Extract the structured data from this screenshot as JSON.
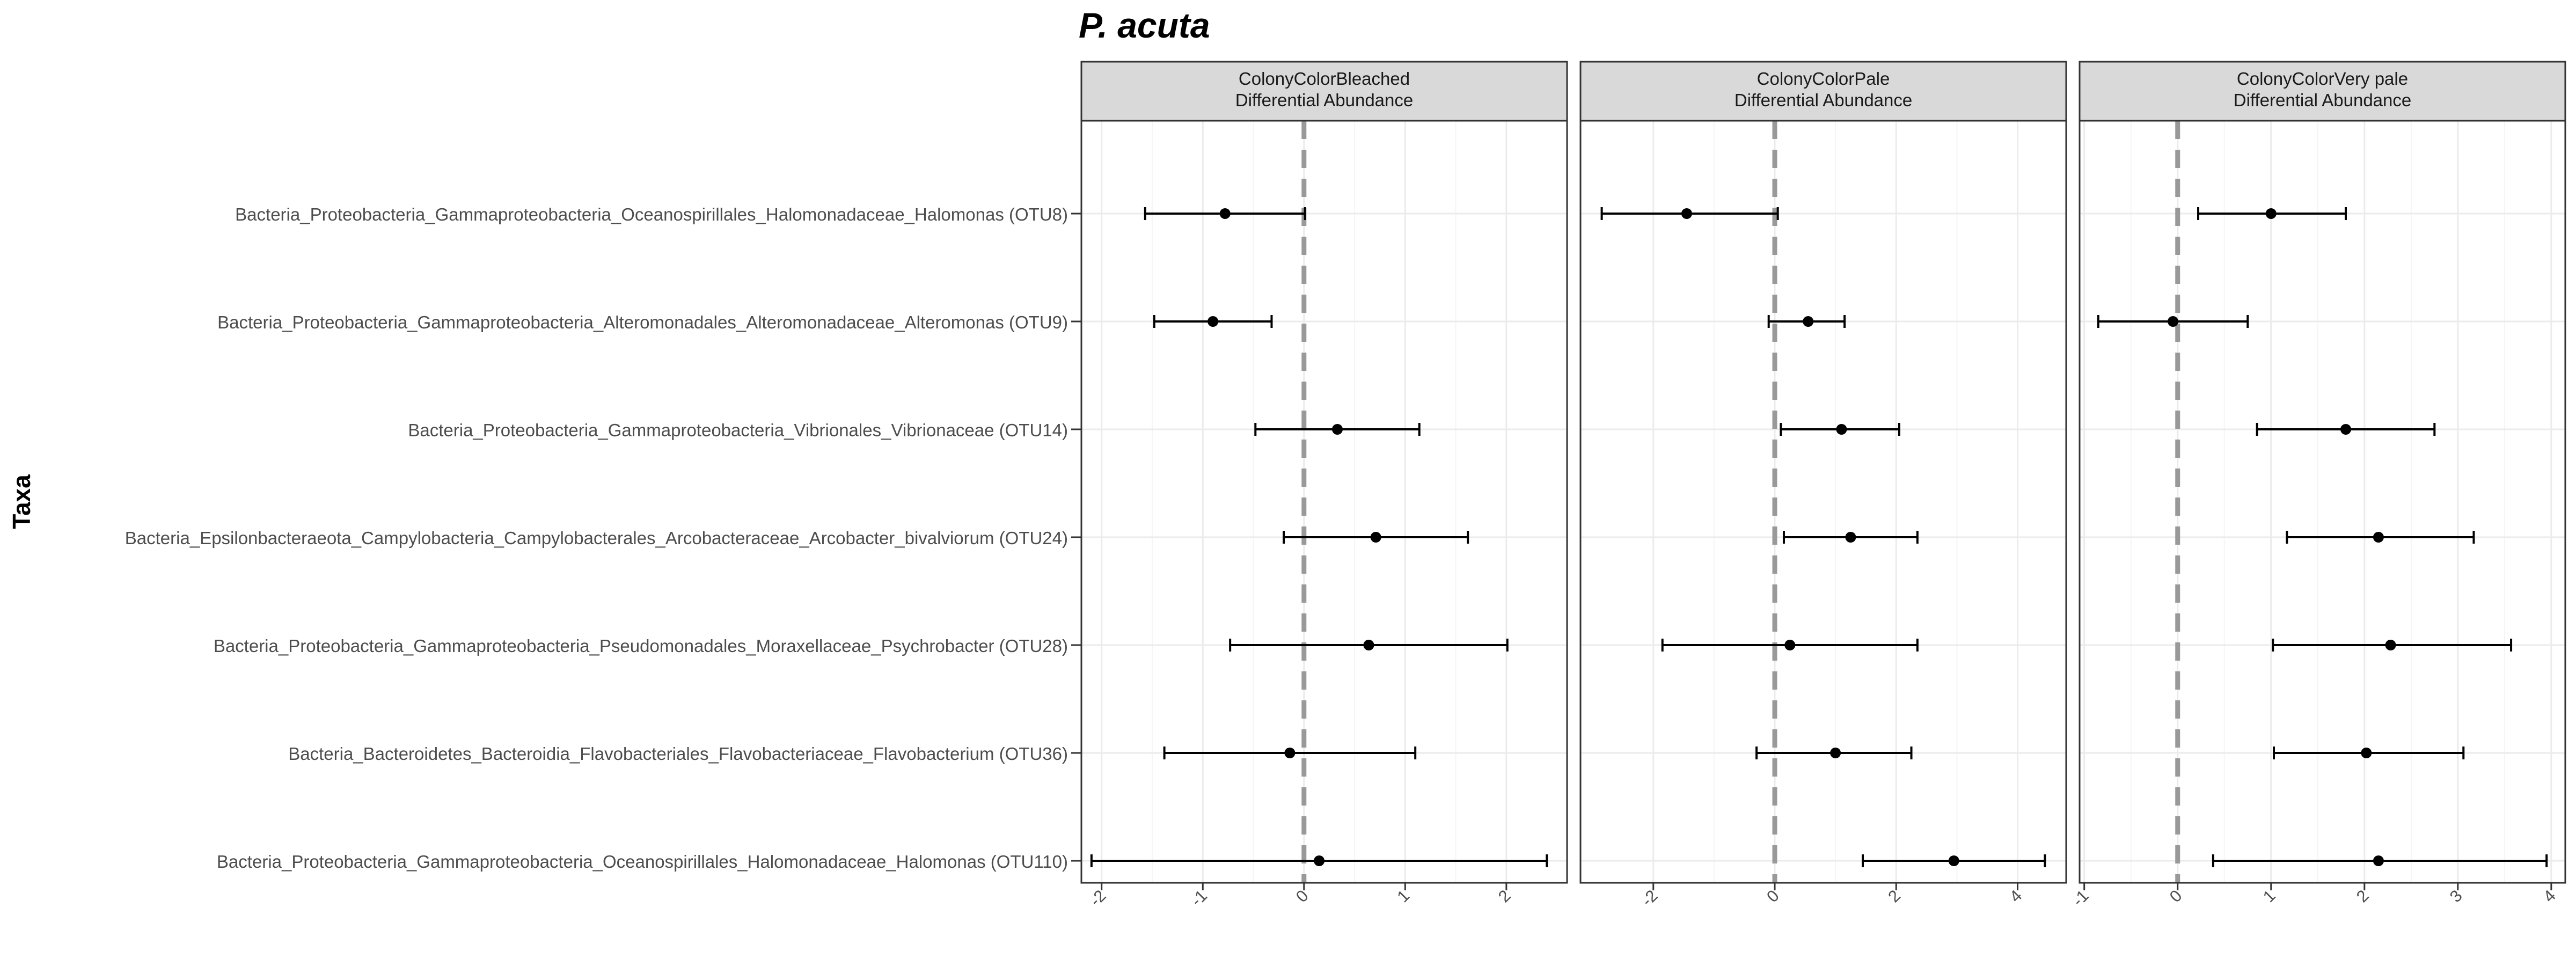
{
  "title": "P. acuta",
  "y_axis_label": "Taxa",
  "colors": {
    "strip_bg": "#d9d9d9",
    "panel_border": "#333333",
    "grid_major": "#ebebeb",
    "zero_line": "#999999",
    "point": "#000000",
    "text": "#4d4d4d"
  },
  "chart_data": [
    {
      "type": "scatter",
      "error_bars": true,
      "facet": "ColonyColorBleached",
      "strip_lines": [
        "ColonyColorBleached",
        "Differential Abundance"
      ],
      "categories": [
        "Bacteria_Proteobacteria_Gammaproteobacteria_Oceanospirillales_Halomonadaceae_Halomonas (OTU8)",
        "Bacteria_Proteobacteria_Gammaproteobacteria_Alteromonadales_Alteromonadaceae_Alteromonas (OTU9)",
        "Bacteria_Proteobacteria_Gammaproteobacteria_Vibrionales_Vibrionaceae (OTU14)",
        "Bacteria_Epsilonbacteraeota_Campylobacteria_Campylobacterales_Arcobacteraceae_Arcobacter_bivalviorum (OTU24)",
        "Bacteria_Proteobacteria_Gammaproteobacteria_Pseudomonadales_Moraxellaceae_Psychrobacter (OTU28)",
        "Bacteria_Bacteroidetes_Bacteroidia_Flavobacteriales_Flavobacteriaceae_Flavobacterium (OTU36)",
        "Bacteria_Proteobacteria_Gammaproteobacteria_Oceanospirillales_Halomonadaceae_Halomonas (OTU110)"
      ],
      "estimate": [
        -0.78,
        -0.9,
        0.33,
        0.71,
        0.64,
        -0.14,
        0.15
      ],
      "lower": [
        -1.57,
        -1.48,
        -0.48,
        -0.2,
        -0.73,
        -1.38,
        -2.1
      ],
      "upper": [
        0.01,
        -0.32,
        1.14,
        1.62,
        2.01,
        1.1,
        2.4
      ],
      "xlim": [
        -2.2,
        2.6
      ],
      "xticks": [
        -2,
        -1,
        0,
        1,
        2
      ],
      "xtick_labels": [
        "-2",
        "-1",
        "0",
        "1",
        "2"
      ],
      "zero_line": 0,
      "grid": true
    },
    {
      "type": "scatter",
      "error_bars": true,
      "facet": "ColonyColorPale",
      "strip_lines": [
        "ColonyColorPale",
        "Differential Abundance"
      ],
      "estimate": [
        -1.45,
        0.55,
        1.1,
        1.25,
        0.25,
        1.0,
        2.95
      ],
      "lower": [
        -2.85,
        -0.1,
        0.1,
        0.15,
        -1.85,
        -0.3,
        1.45
      ],
      "upper": [
        0.05,
        1.15,
        2.05,
        2.35,
        2.35,
        2.25,
        4.45
      ],
      "xlim": [
        -3.2,
        4.8
      ],
      "xticks": [
        -2,
        0,
        2,
        4
      ],
      "xtick_labels": [
        "-2",
        "0",
        "2",
        "4"
      ],
      "zero_line": 0,
      "grid": true
    },
    {
      "type": "scatter",
      "error_bars": true,
      "facet": "ColonyColorVery pale",
      "strip_lines": [
        "ColonyColorVery pale",
        "Differential Abundance"
      ],
      "estimate": [
        1.0,
        -0.05,
        1.8,
        2.15,
        2.28,
        2.02,
        2.15
      ],
      "lower": [
        0.22,
        -0.85,
        0.85,
        1.17,
        1.02,
        1.03,
        0.38
      ],
      "upper": [
        1.8,
        0.75,
        2.75,
        3.17,
        3.57,
        3.06,
        3.95
      ],
      "xlim": [
        -1.05,
        4.15
      ],
      "xticks": [
        -1,
        0,
        1,
        2,
        3,
        4
      ],
      "xtick_labels": [
        "-1",
        "0",
        "1",
        "2",
        "3",
        "4"
      ],
      "zero_line": 0,
      "grid": true
    }
  ]
}
